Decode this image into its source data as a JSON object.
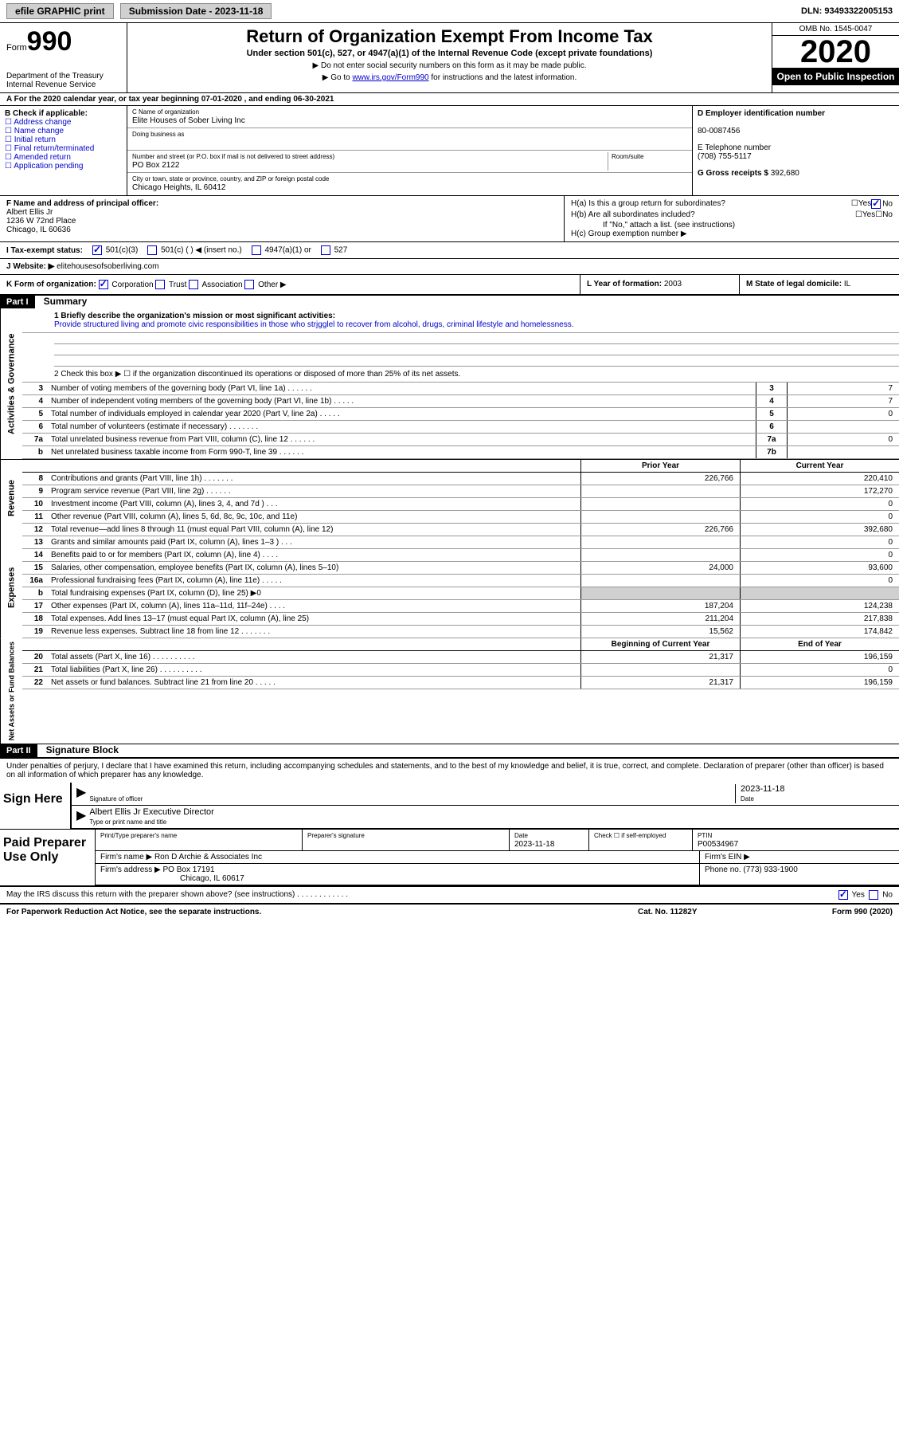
{
  "topbar": {
    "efile": "efile GRAPHIC print",
    "sub_label": "Submission Date - 2023-11-18",
    "dln": "DLN: 93493322005153"
  },
  "header": {
    "form_word": "Form",
    "form_num": "990",
    "dept": "Department of the Treasury\nInternal Revenue Service",
    "title": "Return of Organization Exempt From Income Tax",
    "subtitle": "Under section 501(c), 527, or 4947(a)(1) of the Internal Revenue Code (except private foundations)",
    "arrow1": "▶ Do not enter social security numbers on this form as it may be made public.",
    "arrow2_pre": "▶ Go to ",
    "arrow2_link": "www.irs.gov/Form990",
    "arrow2_post": " for instructions and the latest information.",
    "omb": "OMB No. 1545-0047",
    "year": "2020",
    "open_pub": "Open to Public Inspection"
  },
  "line_a": "A For the 2020 calendar year, or tax year beginning 07-01-2020   , and ending 06-30-2021",
  "col_b": {
    "title": "B Check if applicable:",
    "items": [
      "Address change",
      "Name change",
      "Initial return",
      "Final return/terminated",
      "Amended return",
      "Application pending"
    ]
  },
  "col_c": {
    "name_lbl": "C Name of organization",
    "name": "Elite Houses of Sober Living Inc",
    "dba_lbl": "Doing business as",
    "dba": "",
    "addr_lbl": "Number and street (or P.O. box if mail is not delivered to street address)",
    "addr": "PO Box 2122",
    "room_lbl": "Room/suite",
    "city_lbl": "City or town, state or province, country, and ZIP or foreign postal code",
    "city": "Chicago Heights, IL  60412"
  },
  "col_d": {
    "ein_lbl": "D Employer identification number",
    "ein": "80-0087456",
    "tel_lbl": "E Telephone number",
    "tel": "(708) 755-5117",
    "gross_lbl": "G Gross receipts $",
    "gross": "392,680"
  },
  "col_f": {
    "lbl": "F  Name and address of principal officer:",
    "name": "Albert Ellis Jr",
    "addr1": "1236 W 72nd Place",
    "addr2": "Chicago, IL  60636"
  },
  "col_h": {
    "ha": "H(a)  Is this a group return for subordinates?",
    "hb": "H(b)  Are all subordinates included?",
    "hb_note": "If \"No,\" attach a list. (see instructions)",
    "hc": "H(c)  Group exemption number ▶"
  },
  "tax_i": {
    "lbl": "I   Tax-exempt status:",
    "o1": "501(c)(3)",
    "o2": "501(c) (  ) ◀ (insert no.)",
    "o3": "4947(a)(1) or",
    "o4": "527"
  },
  "web": {
    "lbl": "J   Website: ▶",
    "val": "elitehousesofsoberliving.com"
  },
  "klm": {
    "k": "K Form of organization:",
    "k_opts": [
      "Corporation",
      "Trust",
      "Association",
      "Other ▶"
    ],
    "l_lbl": "L Year of formation:",
    "l_val": "2003",
    "m_lbl": "M State of legal domicile:",
    "m_val": "IL"
  },
  "part1": {
    "hdr": "Part I",
    "title": "Summary",
    "side1": "Activities & Governance",
    "q1_lbl": "1   Briefly describe the organization's mission or most significant activities:",
    "q1_txt": "Provide structured living and promote civic responsibilities in those who strjgglel to recover from alcohol, drugs, criminal lifestyle and homelessness.",
    "q2": "2   Check this box ▶ ☐  if the organization discontinued its operations or disposed of more than 25% of its net assets.",
    "rows_gov": [
      {
        "n": "3",
        "txt": "Number of voting members of the governing body (Part VI, line 1a)   .   .   .   .   .   .",
        "box": "3",
        "val": "7"
      },
      {
        "n": "4",
        "txt": "Number of independent voting members of the governing body (Part VI, line 1b)   .   .   .   .   .",
        "box": "4",
        "val": "7"
      },
      {
        "n": "5",
        "txt": "Total number of individuals employed in calendar year 2020 (Part V, line 2a)   .   .   .   .   .",
        "box": "5",
        "val": "0"
      },
      {
        "n": "6",
        "txt": "Total number of volunteers (estimate if necessary)   .   .   .   .   .   .   .",
        "box": "6",
        "val": ""
      },
      {
        "n": "7a",
        "txt": "Total unrelated business revenue from Part VIII, column (C), line 12   .   .   .   .   .   .",
        "box": "7a",
        "val": "0"
      },
      {
        "n": "b",
        "txt": "Net unrelated business taxable income from Form 990-T, line 39   .   .   .   .   .   .",
        "box": "7b",
        "val": ""
      }
    ],
    "fin_hdr": {
      "py": "Prior Year",
      "cy": "Current Year"
    },
    "side2": "Revenue",
    "rows_rev": [
      {
        "n": "8",
        "txt": "Contributions and grants (Part VIII, line 1h)   .   .   .   .   .   .   .",
        "py": "226,766",
        "cy": "220,410"
      },
      {
        "n": "9",
        "txt": "Program service revenue (Part VIII, line 2g)   .   .   .   .   .   .",
        "py": "",
        "cy": "172,270"
      },
      {
        "n": "10",
        "txt": "Investment income (Part VIII, column (A), lines 3, 4, and 7d )   .   .   .",
        "py": "",
        "cy": "0"
      },
      {
        "n": "11",
        "txt": "Other revenue (Part VIII, column (A), lines 5, 6d, 8c, 9c, 10c, and 11e)",
        "py": "",
        "cy": "0"
      },
      {
        "n": "12",
        "txt": "Total revenue—add lines 8 through 11 (must equal Part VIII, column (A), line 12)",
        "py": "226,766",
        "cy": "392,680"
      }
    ],
    "side3": "Expenses",
    "rows_exp": [
      {
        "n": "13",
        "txt": "Grants and similar amounts paid (Part IX, column (A), lines 1–3 )   .   .   .",
        "py": "",
        "cy": "0"
      },
      {
        "n": "14",
        "txt": "Benefits paid to or for members (Part IX, column (A), line 4)   .   .   .   .",
        "py": "",
        "cy": "0"
      },
      {
        "n": "15",
        "txt": "Salaries, other compensation, employee benefits (Part IX, column (A), lines 5–10)",
        "py": "24,000",
        "cy": "93,600"
      },
      {
        "n": "16a",
        "txt": "Professional fundraising fees (Part IX, column (A), line 11e)   .   .   .   .   .",
        "py": "",
        "cy": "0"
      },
      {
        "n": "b",
        "txt": "Total fundraising expenses (Part IX, column (D), line 25) ▶0",
        "py": "shade",
        "cy": "shade"
      },
      {
        "n": "17",
        "txt": "Other expenses (Part IX, column (A), lines 11a–11d, 11f–24e)   .   .   .   .",
        "py": "187,204",
        "cy": "124,238"
      },
      {
        "n": "18",
        "txt": "Total expenses. Add lines 13–17 (must equal Part IX, column (A), line 25)",
        "py": "211,204",
        "cy": "217,838"
      },
      {
        "n": "19",
        "txt": "Revenue less expenses. Subtract line 18 from line 12   .   .   .   .   .   .   .",
        "py": "15,562",
        "cy": "174,842"
      }
    ],
    "fin_hdr2": {
      "py": "Beginning of Current Year",
      "cy": "End of Year"
    },
    "side4": "Net Assets or Fund Balances",
    "rows_net": [
      {
        "n": "20",
        "txt": "Total assets (Part X, line 16)   .   .   .   .   .   .   .   .   .   .",
        "py": "21,317",
        "cy": "196,159"
      },
      {
        "n": "21",
        "txt": "Total liabilities (Part X, line 26)   .   .   .   .   .   .   .   .   .   .",
        "py": "",
        "cy": "0"
      },
      {
        "n": "22",
        "txt": "Net assets or fund balances. Subtract line 21 from line 20   .   .   .   .   .",
        "py": "21,317",
        "cy": "196,159"
      }
    ]
  },
  "part2": {
    "hdr": "Part II",
    "title": "Signature Block",
    "decl": "Under penalties of perjury, I declare that I have examined this return, including accompanying schedules and statements, and to the best of my knowledge and belief, it is true, correct, and complete. Declaration of preparer (other than officer) is based on all information of which preparer has any knowledge.",
    "sign_lbl": "Sign Here",
    "sig_of": "Signature of officer",
    "sig_date": "2023-11-18",
    "date_lbl": "Date",
    "name_title": "Albert Ellis Jr  Executive Director",
    "name_title_lbl": "Type or print name and title",
    "prep_lbl": "Paid Preparer Use Only",
    "prep_name_lbl": "Print/Type preparer's name",
    "prep_sig_lbl": "Preparer's signature",
    "prep_date_lbl": "Date",
    "prep_date": "2023-11-18",
    "prep_check_lbl": "Check ☐ if self-employed",
    "ptin_lbl": "PTIN",
    "ptin": "P00534967",
    "firm_name_lbl": "Firm's name   ▶",
    "firm_name": "Ron D Archie & Associates Inc",
    "firm_ein_lbl": "Firm's EIN ▶",
    "firm_addr_lbl": "Firm's address ▶",
    "firm_addr": "PO Box 17191",
    "firm_city": "Chicago, IL  60617",
    "firm_phone_lbl": "Phone no.",
    "firm_phone": "(773) 933-1900",
    "discuss": "May the IRS discuss this return with the preparer shown above? (see instructions)   .   .   .   .   .   .   .   .   .   .   .   .",
    "yes": "Yes",
    "no": "No"
  },
  "footer": {
    "pra": "For Paperwork Reduction Act Notice, see the separate instructions.",
    "cat": "Cat. No. 11282Y",
    "form": "Form 990 (2020)"
  }
}
